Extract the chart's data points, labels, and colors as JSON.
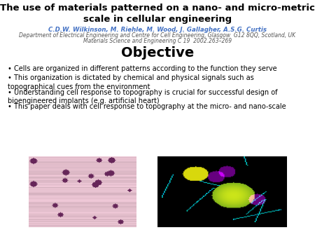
{
  "title_line1": "The use of materials patterned on a nano- and micro-metric",
  "title_line2": "scale in cellular engineering",
  "authors": "C.D.W. Wilkinson, M. Riehle, M. Wood, J. Gallagher, A.S.G. Curtis",
  "affiliation": "Department of Electrical Engineering and Centre for Cell Engineering, Glasgow  G12 8QQ, Scotland, UK",
  "journal": "Materials Science and Engineering C 19  2002.263–269",
  "section_title": "Objective",
  "bullets": [
    "Cells are organized in different patterns according to the function they serve",
    "This organization is dictated by chemical and physical signals such as\ntopographical cues from the environment",
    "Understanding cell response to topography is crucial for successful design of\nbioengineered implants (e.g. artificial heart)",
    "This paper deals with cell response to topography at the micro- and nano-scale"
  ],
  "title_fontsize": 9.5,
  "authors_fontsize": 6.2,
  "affiliation_fontsize": 5.5,
  "journal_fontsize": 5.5,
  "section_fontsize": 14,
  "bullet_fontsize": 7.0,
  "title_color": "#000000",
  "authors_color": "#4472C4",
  "affiliation_color": "#555555",
  "journal_color": "#555555",
  "section_color": "#000000",
  "bullet_color": "#000000",
  "background_color": "#ffffff"
}
